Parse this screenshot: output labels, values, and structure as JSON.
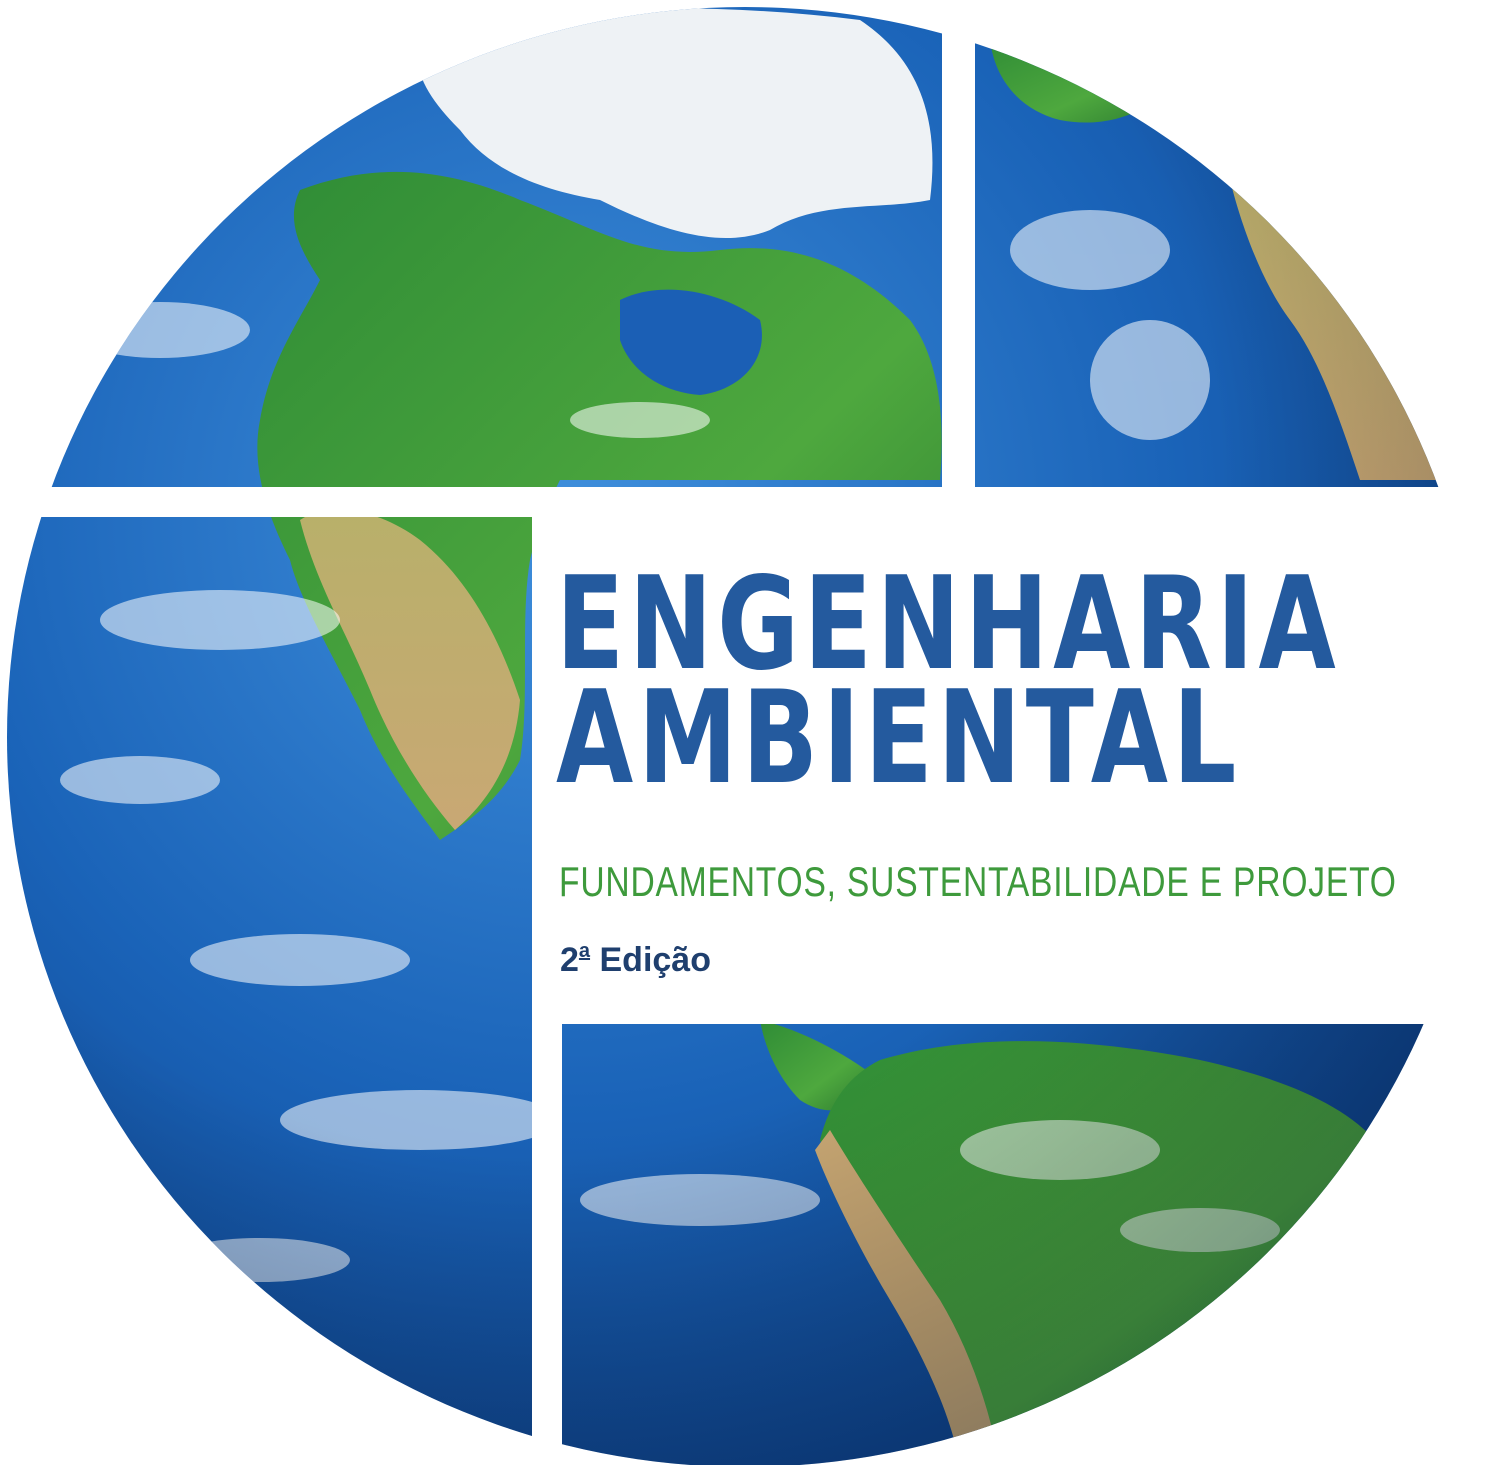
{
  "cover": {
    "title_line_1": "ENGENHARIA",
    "title_line_2": "AMBIENTAL",
    "subtitle": "FUNDAMENTOS, SUSTENTABILIDADE E PROJETO",
    "edition_number": "2",
    "edition_ordinal": "a",
    "edition_word": "Edição"
  },
  "colors": {
    "title": "#245a9e",
    "subtitle": "#3e9a3c",
    "edition": "#1f3f6e",
    "ocean": "#1b5fb5",
    "land_green": "#3f9a3a",
    "land_tan": "#c8b46e",
    "ice": "#f2f4f6"
  },
  "graphic": {
    "globe_icon": "earth-globe-icon"
  }
}
